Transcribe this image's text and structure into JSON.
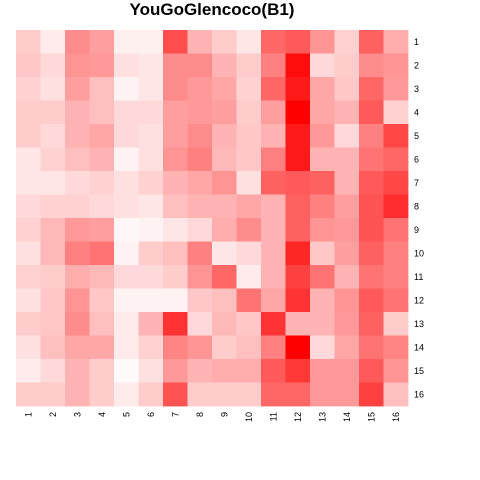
{
  "chart_data": {
    "type": "heatmap",
    "title": "YouGoGlencoco(B1)",
    "x_labels": [
      "1",
      "2",
      "3",
      "4",
      "5",
      "6",
      "7",
      "8",
      "9",
      "10",
      "11",
      "12",
      "13",
      "14",
      "15",
      "16"
    ],
    "y_labels": [
      "1",
      "2",
      "3",
      "4",
      "5",
      "6",
      "7",
      "8",
      "9",
      "10",
      "11",
      "12",
      "13",
      "14",
      "15",
      "16"
    ],
    "color_low": "#ffffff",
    "color_high": "#ff0000",
    "value_range": [
      0,
      1
    ],
    "values": [
      [
        0.2,
        0.08,
        0.45,
        0.38,
        0.06,
        0.06,
        0.7,
        0.3,
        0.2,
        0.1,
        0.6,
        0.65,
        0.42,
        0.18,
        0.62,
        0.32
      ],
      [
        0.22,
        0.15,
        0.42,
        0.4,
        0.12,
        0.1,
        0.45,
        0.45,
        0.3,
        0.2,
        0.5,
        0.95,
        0.15,
        0.2,
        0.45,
        0.42
      ],
      [
        0.18,
        0.12,
        0.38,
        0.25,
        0.05,
        0.1,
        0.45,
        0.4,
        0.35,
        0.18,
        0.6,
        0.9,
        0.35,
        0.22,
        0.6,
        0.4
      ],
      [
        0.2,
        0.2,
        0.3,
        0.25,
        0.15,
        0.15,
        0.38,
        0.4,
        0.38,
        0.2,
        0.38,
        1.0,
        0.35,
        0.3,
        0.65,
        0.18
      ],
      [
        0.2,
        0.15,
        0.3,
        0.35,
        0.15,
        0.12,
        0.38,
        0.45,
        0.3,
        0.22,
        0.3,
        0.9,
        0.4,
        0.15,
        0.5,
        0.72
      ],
      [
        0.1,
        0.18,
        0.25,
        0.3,
        0.05,
        0.12,
        0.42,
        0.5,
        0.28,
        0.22,
        0.5,
        0.9,
        0.3,
        0.3,
        0.55,
        0.6
      ],
      [
        0.1,
        0.1,
        0.15,
        0.18,
        0.12,
        0.18,
        0.3,
        0.35,
        0.42,
        0.12,
        0.62,
        0.65,
        0.62,
        0.3,
        0.65,
        0.72
      ],
      [
        0.15,
        0.18,
        0.18,
        0.15,
        0.12,
        0.1,
        0.25,
        0.3,
        0.3,
        0.35,
        0.3,
        0.62,
        0.5,
        0.38,
        0.68,
        0.82
      ],
      [
        0.18,
        0.28,
        0.4,
        0.38,
        0.03,
        0.05,
        0.1,
        0.15,
        0.32,
        0.45,
        0.3,
        0.62,
        0.42,
        0.4,
        0.68,
        0.55
      ],
      [
        0.12,
        0.28,
        0.5,
        0.55,
        0.05,
        0.2,
        0.25,
        0.5,
        0.1,
        0.15,
        0.3,
        0.85,
        0.22,
        0.38,
        0.62,
        0.5
      ],
      [
        0.18,
        0.2,
        0.32,
        0.28,
        0.15,
        0.15,
        0.2,
        0.42,
        0.6,
        0.08,
        0.3,
        0.75,
        0.55,
        0.3,
        0.55,
        0.5
      ],
      [
        0.12,
        0.22,
        0.42,
        0.22,
        0.05,
        0.05,
        0.05,
        0.22,
        0.25,
        0.55,
        0.35,
        0.8,
        0.3,
        0.42,
        0.65,
        0.55
      ],
      [
        0.2,
        0.22,
        0.45,
        0.25,
        0.08,
        0.3,
        0.8,
        0.15,
        0.28,
        0.22,
        0.8,
        0.3,
        0.3,
        0.4,
        0.62,
        0.2
      ],
      [
        0.12,
        0.25,
        0.35,
        0.35,
        0.08,
        0.18,
        0.48,
        0.42,
        0.2,
        0.25,
        0.5,
        1.0,
        0.15,
        0.35,
        0.55,
        0.48
      ],
      [
        0.08,
        0.15,
        0.3,
        0.2,
        0.02,
        0.12,
        0.4,
        0.3,
        0.32,
        0.32,
        0.65,
        0.78,
        0.4,
        0.4,
        0.65,
        0.42
      ],
      [
        0.2,
        0.2,
        0.3,
        0.2,
        0.08,
        0.2,
        0.68,
        0.2,
        0.2,
        0.2,
        0.6,
        0.6,
        0.4,
        0.4,
        0.75,
        0.25
      ]
    ]
  }
}
